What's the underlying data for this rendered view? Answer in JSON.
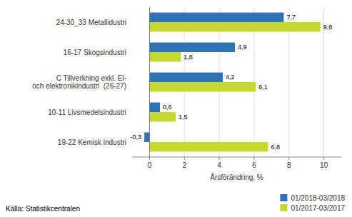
{
  "chart_data": {
    "type": "bar",
    "orientation": "horizontal",
    "categories": [
      "19-22 Kemisk industri",
      "10-11 Livsmedelsindustri",
      "C Tillverkning exkl. El-\noch elektronikindustri  (26-27)",
      "16-17 Skogsindustri",
      "24-30_33 Metallidustri"
    ],
    "series": [
      {
        "name": "01/2018-03/2018",
        "color": "#2E74B5",
        "values": [
          -0.3,
          0.6,
          4.2,
          4.9,
          7.7
        ],
        "value_labels": [
          "-0,3",
          "0,6",
          "4,2",
          "4,9",
          "7,7"
        ]
      },
      {
        "name": "01/2017-03/2017",
        "color": "#C5D930",
        "values": [
          6.8,
          1.5,
          6.1,
          1.8,
          9.8
        ],
        "value_labels": [
          "6,8",
          "1,5",
          "6,1",
          "1,8",
          "9,8"
        ]
      }
    ],
    "xlabel": "Årsförändring, %",
    "xlim": [
      -1,
      11
    ],
    "xticks": [
      0,
      2,
      4,
      6,
      8,
      10
    ],
    "grid": true,
    "legend": "lower-right",
    "data_labels": true,
    "annotations": [
      "Källa: Statistikcentralen"
    ]
  }
}
